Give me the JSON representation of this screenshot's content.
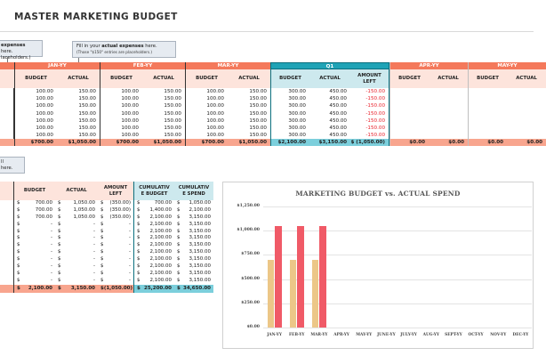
{
  "title": "MASTER MARKETING BUDGET",
  "notes": {
    "budget_note": {
      "line1_bold": "expenses",
      "line1_suffix": " here.",
      "line2": "laceholders.)"
    },
    "actual_note": {
      "line1_prefix": "Fill in your ",
      "line1_bold": "actual expenses",
      "line1_suffix": " here.",
      "line2": "(Those \"$150\" entries are placeholders.)"
    },
    "bottom_note": {
      "line1": "ll",
      "line2": "here."
    }
  },
  "budget_table": {
    "months": [
      {
        "label": "JAN-YY",
        "budget": [
          "100.00",
          "100.00",
          "100.00",
          "100.00",
          "100.00",
          "100.00",
          "100.00"
        ],
        "actual": [
          "150.00",
          "150.00",
          "150.00",
          "150.00",
          "150.00",
          "150.00",
          "150.00"
        ],
        "total_budget": "$700.00",
        "total_actual": "$1,050.00"
      },
      {
        "label": "FEB-YY",
        "budget": [
          "100.00",
          "100.00",
          "100.00",
          "100.00",
          "100.00",
          "100.00",
          "100.00"
        ],
        "actual": [
          "150.00",
          "150.00",
          "150.00",
          "150.00",
          "150.00",
          "150.00",
          "150.00"
        ],
        "total_budget": "$700.00",
        "total_actual": "$1,050.00"
      },
      {
        "label": "MAR-YY",
        "budget": [
          "100.00",
          "100.00",
          "100.00",
          "100.00",
          "100.00",
          "100.00",
          "100.00"
        ],
        "actual": [
          "150.00",
          "150.00",
          "150.00",
          "150.00",
          "150.00",
          "150.00",
          "150.00"
        ],
        "total_budget": "$700.00",
        "total_actual": "$1,050.00"
      }
    ],
    "q1": {
      "label": "Q1",
      "budget": [
        "300.00",
        "300.00",
        "300.00",
        "300.00",
        "300.00",
        "300.00",
        "300.00"
      ],
      "actual": [
        "450.00",
        "450.00",
        "450.00",
        "450.00",
        "450.00",
        "450.00",
        "450.00"
      ],
      "left": [
        "-150.00",
        "-150.00",
        "-150.00",
        "-150.00",
        "-150.00",
        "-150.00",
        "-150.00"
      ],
      "total_budget": "$2,100.00",
      "total_actual": "$3,150.00",
      "total_left": "$ (1,050.00)"
    },
    "future_months": [
      {
        "label": "APR-YY",
        "total_budget": "$0.00",
        "total_actual": "$0.00"
      },
      {
        "label": "MAY-YY",
        "total_budget": "$0.00",
        "total_actual": "$0.00"
      }
    ],
    "sub_headers": {
      "budget": "BUDGET",
      "actual": "ACTUAL",
      "amount_left_1": "AMOUNT",
      "amount_left_2": "LEFT"
    }
  },
  "summary_table": {
    "headers": {
      "budget": "BUDGET",
      "actual": "ACTUAL",
      "amount_left_1": "AMOUNT",
      "amount_left_2": "LEFT",
      "cum_budget_1": "CUMULATIV",
      "cum_budget_2": "E BUDGET",
      "cum_spend_1": "CUMULATIV",
      "cum_spend_2": "E SPEND"
    },
    "rows": [
      {
        "budget": "700.00",
        "actual": "1,050.00",
        "left": "(350.00)",
        "cum_budget": "700.00",
        "cum_spend": "1,050.00"
      },
      {
        "budget": "700.00",
        "actual": "1,050.00",
        "left": "(350.00)",
        "cum_budget": "1,400.00",
        "cum_spend": "2,100.00"
      },
      {
        "budget": "700.00",
        "actual": "1,050.00",
        "left": "(350.00)",
        "cum_budget": "2,100.00",
        "cum_spend": "3,150.00"
      },
      {
        "budget": "-",
        "actual": "-",
        "left": "-",
        "cum_budget": "2,100.00",
        "cum_spend": "3,150.00"
      },
      {
        "budget": "-",
        "actual": "-",
        "left": "-",
        "cum_budget": "2,100.00",
        "cum_spend": "3,150.00"
      },
      {
        "budget": "-",
        "actual": "-",
        "left": "-",
        "cum_budget": "2,100.00",
        "cum_spend": "3,150.00"
      },
      {
        "budget": "-",
        "actual": "-",
        "left": "-",
        "cum_budget": "2,100.00",
        "cum_spend": "3,150.00"
      },
      {
        "budget": "-",
        "actual": "-",
        "left": "-",
        "cum_budget": "2,100.00",
        "cum_spend": "3,150.00"
      },
      {
        "budget": "-",
        "actual": "-",
        "left": "-",
        "cum_budget": "2,100.00",
        "cum_spend": "3,150.00"
      },
      {
        "budget": "-",
        "actual": "-",
        "left": "-",
        "cum_budget": "2,100.00",
        "cum_spend": "3,150.00"
      },
      {
        "budget": "-",
        "actual": "-",
        "left": "-",
        "cum_budget": "2,100.00",
        "cum_spend": "3,150.00"
      },
      {
        "budget": "-",
        "actual": "-",
        "left": "-",
        "cum_budget": "2,100.00",
        "cum_spend": "3,150.00"
      }
    ],
    "totals": {
      "budget": "2,100.00",
      "actual": "3,150.00",
      "left": "(1,050.00)",
      "cum_budget": "25,200.00",
      "cum_spend": "34,650.00"
    },
    "currency": "$"
  },
  "colors": {
    "month_header": "#f4795b",
    "sub_header": "#fde4dc",
    "total_row": "#f8a58e",
    "q1_header": "#1fa3b6",
    "q1_sub": "#cde9ee",
    "q1_total": "#7ccfdc",
    "negative": "#e8212b",
    "budget_bar": "#ecc788",
    "actual_bar": "#f05a67"
  },
  "chart_data": {
    "type": "bar",
    "title": "MARKETING BUDGET vs. ACTUAL SPEND",
    "categories": [
      "JAN-YY",
      "FEB-YY",
      "MAR-YY",
      "APR-YY",
      "MAY-YY",
      "JUNE-YY",
      "JULY-YY",
      "AUG-YY",
      "SEPT-YY",
      "OCT-YY",
      "NOV-YY",
      "DEC-YY"
    ],
    "series": [
      {
        "values": [
          700,
          700,
          700,
          0,
          0,
          0,
          0,
          0,
          0,
          0,
          0,
          0
        ]
      },
      {
        "values": [
          1050,
          1050,
          1050,
          0,
          0,
          0,
          0,
          0,
          0,
          0,
          0,
          0
        ]
      }
    ],
    "yticks": [
      "$0.00",
      "$250.00",
      "$500.00",
      "$750.00",
      "$1,000.00",
      "$1,250.00"
    ],
    "ylim": [
      0,
      1250
    ],
    "grid": true
  }
}
